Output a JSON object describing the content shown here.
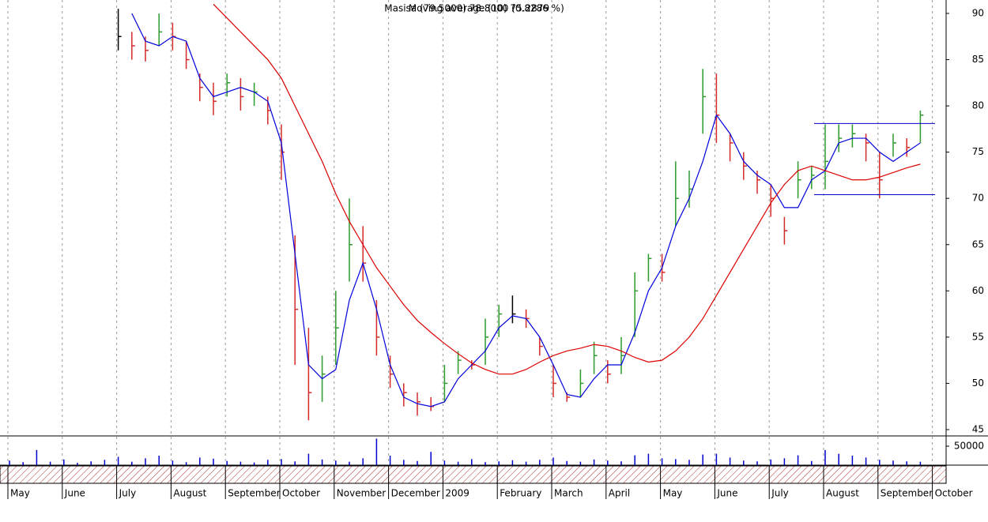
{
  "chart_data": {
    "type": "stock",
    "title": [
      "Masisa (79.5000) 78.8000 (0.8286 %)",
      "Moving average (10) 75.2879"
    ],
    "categories": [
      "May",
      null,
      null,
      null,
      "June",
      null,
      null,
      null,
      "July",
      null,
      null,
      null,
      "August",
      null,
      null,
      null,
      "September",
      null,
      null,
      null,
      "October",
      null,
      null,
      null,
      "November",
      null,
      null,
      null,
      "December",
      null,
      null,
      null,
      "2009",
      null,
      null,
      null,
      "February",
      null,
      null,
      null,
      "March",
      null,
      null,
      null,
      "April",
      null,
      null,
      null,
      "May",
      null,
      null,
      null,
      "June",
      null,
      null,
      null,
      "July",
      null,
      null,
      null,
      "August",
      null,
      null,
      null,
      "September",
      null,
      null,
      null,
      "October"
    ],
    "high": [
      null,
      null,
      null,
      null,
      null,
      null,
      null,
      null,
      90.5,
      88,
      87.5,
      90,
      89,
      87,
      83.5,
      82.5,
      83.5,
      83,
      82.5,
      81,
      78,
      66,
      56,
      53,
      60,
      70,
      67,
      59,
      53,
      50,
      49,
      48.5,
      52,
      53.5,
      52.5,
      57,
      58.5,
      59.5,
      58,
      55,
      52,
      49,
      51.5,
      54.5,
      52.5,
      55,
      62,
      64,
      64,
      74,
      73,
      84,
      83.5,
      77,
      75,
      73,
      71.5,
      68,
      74,
      73.5,
      78,
      78,
      78,
      77,
      75,
      77,
      76.5,
      79.5,
      null
    ],
    "low": [
      null,
      null,
      null,
      null,
      null,
      null,
      null,
      null,
      86,
      85,
      84.8,
      86.5,
      86,
      84,
      80.5,
      79,
      81,
      79.5,
      80,
      78,
      72,
      52,
      46,
      48,
      52,
      61,
      61,
      53,
      49.5,
      47.5,
      46.5,
      47,
      48,
      51,
      51.5,
      52,
      55,
      56.5,
      56,
      53,
      48.5,
      48,
      48.5,
      51,
      50,
      51,
      55,
      61,
      61,
      67,
      69,
      77,
      76,
      74,
      72,
      70.5,
      68,
      65,
      70,
      71,
      71,
      75,
      75.5,
      74,
      70,
      74.5,
      74.5,
      76,
      null
    ],
    "close": [
      null,
      null,
      null,
      null,
      null,
      null,
      null,
      null,
      87.5,
      86.5,
      86,
      88,
      87.5,
      85,
      82,
      80.5,
      82.5,
      81,
      81.5,
      79.5,
      75,
      58,
      49,
      51,
      56,
      65,
      63,
      55,
      51,
      49,
      48,
      47.5,
      50,
      52.5,
      52,
      55,
      57.5,
      57.5,
      57,
      54,
      50,
      48.5,
      50,
      53,
      51,
      53,
      60,
      63.5,
      62,
      70,
      71,
      81,
      79,
      76,
      73.5,
      72,
      70,
      66.5,
      72,
      72.5,
      74,
      76.5,
      77,
      76,
      72,
      76,
      75.5,
      79,
      null
    ],
    "up_color": "#2e9a2e",
    "down_color": "#d42a2a",
    "flat_color": "#000000",
    "series": [
      {
        "color": "#0000dd",
        "values": [
          null,
          null,
          null,
          null,
          null,
          null,
          null,
          null,
          null,
          90,
          87,
          86.5,
          87.5,
          87,
          83,
          81,
          81.5,
          82,
          81.5,
          80.5,
          76,
          64,
          52,
          50.5,
          51.5,
          59,
          63,
          58,
          52,
          48.5,
          47.8,
          47.5,
          48,
          50.5,
          52,
          53.5,
          56,
          57.3,
          57,
          55,
          52,
          48.8,
          48.5,
          50.5,
          52,
          52,
          55.5,
          60,
          62.5,
          67,
          70,
          74,
          79,
          77,
          74,
          72.5,
          71.5,
          69,
          69,
          72,
          73,
          76,
          76.5,
          76.5,
          75,
          74,
          75,
          76,
          null
        ]
      },
      {
        "color": "#dd0000",
        "values": [
          null,
          null,
          null,
          null,
          null,
          null,
          null,
          null,
          null,
          null,
          null,
          null,
          null,
          null,
          null,
          91,
          89.5,
          88,
          86.5,
          85,
          83,
          80,
          77,
          74,
          70.5,
          67.5,
          65,
          62.5,
          60.5,
          58.5,
          56.8,
          55.5,
          54.3,
          53.2,
          52.2,
          51.5,
          51,
          51,
          51.5,
          52.3,
          53,
          53.5,
          53.8,
          54.2,
          54,
          53.5,
          52.8,
          52.3,
          52.5,
          53.5,
          55,
          57,
          59.5,
          62,
          64.5,
          67,
          69.5,
          71.5,
          73,
          73.5,
          73,
          72.5,
          72,
          72,
          72.3,
          72.8,
          73.3,
          73.7,
          null
        ]
      }
    ],
    "levels": [
      78.1,
      70.4
    ],
    "level_color": "#0000cc",
    "ylim": [
      44.4,
      91.45
    ],
    "yticks": [
      45,
      50,
      55,
      60,
      65,
      70,
      75,
      80,
      85,
      90
    ],
    "grid": true,
    "volume": {
      "color": "#0000cc",
      "ylim": [
        0,
        75000
      ],
      "yticks": [
        50000
      ],
      "values": [
        12000,
        8000,
        40000,
        9000,
        15000,
        6000,
        10000,
        14000,
        22000,
        9000,
        18000,
        25000,
        12000,
        8000,
        20000,
        17000,
        11000,
        9000,
        7000,
        14000,
        16000,
        10000,
        30000,
        15000,
        12000,
        9000,
        18000,
        70000,
        25000,
        14000,
        11000,
        35000,
        12000,
        9000,
        16000,
        8000,
        10000,
        13000,
        9000,
        14000,
        20000,
        11000,
        9000,
        15000,
        12000,
        10000,
        26000,
        30000,
        18000,
        16000,
        14000,
        28000,
        30000,
        20000,
        12000,
        10000,
        15000,
        18000,
        26000,
        11000,
        40000,
        30000,
        25000,
        20000,
        14000,
        12000,
        10000,
        9000,
        null
      ]
    }
  }
}
